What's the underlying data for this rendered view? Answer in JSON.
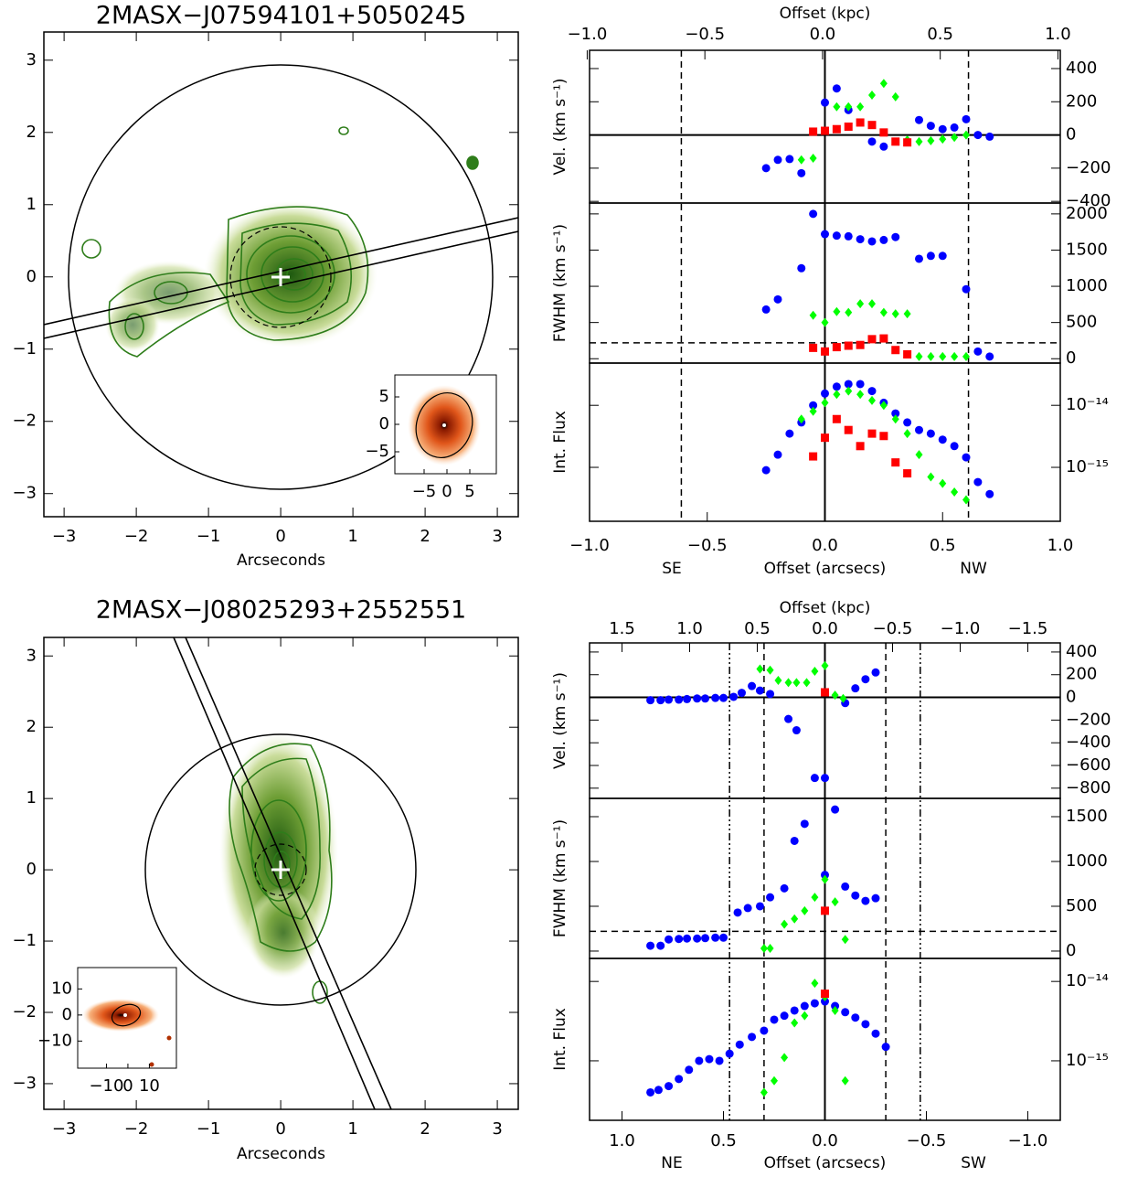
{
  "chart_data": [
    {
      "type": "image",
      "title": "2MASX−J07594101+5050245",
      "xlabel": "Arcseconds",
      "xlim": [
        -3.28,
        3.29
      ],
      "ylim": [
        -3.32,
        3.39
      ],
      "xticks": [
        {
          "value": -3,
          "label": "−3"
        },
        {
          "value": -2,
          "label": "−2"
        },
        {
          "value": -1,
          "label": "−1"
        },
        0,
        1,
        2,
        3
      ],
      "yticks": [
        {
          "value": -3,
          "label": "−3"
        },
        {
          "value": -2,
          "label": "−2"
        },
        {
          "value": -1,
          "label": "−1"
        },
        0,
        1,
        2,
        3
      ],
      "inset": {
        "xlim": [
          -11.4,
          10.8
        ],
        "ylim": [
          -9,
          9
        ],
        "xticks": [
          {
            "value": -5,
            "label": "−5"
          },
          0,
          5
        ],
        "yticks": [
          {
            "value": -5,
            "label": "−5"
          },
          0,
          5
        ]
      }
    },
    {
      "type": "kinematics",
      "xlabel": "Offset (arcsecs)",
      "x2label": "Offset (kpc)",
      "directions": [
        "SE",
        "NW"
      ],
      "xlim": [
        -1.0,
        1.0
      ],
      "xticks": [
        {
          "value": -1,
          "label": "−1.0"
        },
        {
          "value": -0.5,
          "label": "−0.5"
        },
        {
          "value": 0,
          "label": "0.0"
        },
        0.5,
        {
          "value": 1,
          "label": "1.0"
        }
      ],
      "x2lim": [
        -0.99,
        1.01
      ],
      "x2ticks": [
        {
          "value": -1,
          "label": "−1.0"
        },
        {
          "value": -0.5,
          "label": "−0.5"
        },
        {
          "value": 0,
          "label": "0.0"
        },
        0.5,
        {
          "value": 1,
          "label": "1.0"
        }
      ],
      "dashed_x": [
        -0.61,
        0.61
      ],
      "dashdot_x": [],
      "panels": [
        {
          "ylabel": "Vel. (km s⁻¹)",
          "ylim": [
            -410,
            510
          ],
          "log": false,
          "zero_line": true,
          "yticks": [
            {
              "value": -400,
              "label": "−400"
            },
            {
              "value": -200,
              "label": "−200"
            },
            0,
            200,
            400
          ],
          "series": [
            {
              "color": "#0000ff",
              "marker": "circle",
              "x": [
                -0.25,
                -0.2,
                -0.15,
                -0.1,
                0,
                0.05,
                0.1,
                0.2,
                0.25,
                0.4,
                0.45,
                0.5,
                0.55,
                0.6,
                0.65,
                0.7
              ],
              "values": [
                -200,
                -150,
                -145,
                -230,
                195,
                280,
                150,
                -40,
                -70,
                90,
                55,
                35,
                45,
                95,
                0,
                -10
              ]
            },
            {
              "color": "#00ff00",
              "marker": "diamond",
              "x": [
                -0.1,
                -0.05,
                0.05,
                0.1,
                0.15,
                0.2,
                0.25,
                0.3,
                0.35,
                0.4,
                0.45,
                0.5,
                0.55,
                0.6
              ],
              "values": [
                -150,
                -140,
                170,
                170,
                170,
                240,
                310,
                230,
                -30,
                -40,
                -35,
                -25,
                -15,
                0
              ]
            },
            {
              "color": "#ff0000",
              "marker": "square",
              "x": [
                -0.05,
                0,
                0.05,
                0.1,
                0.15,
                0.2,
                0.25,
                0.3,
                0.35
              ],
              "values": [
                20,
                25,
                35,
                50,
                75,
                60,
                15,
                -40,
                -45
              ]
            }
          ]
        },
        {
          "ylabel": "FWHM (km s⁻¹)",
          "ylim": [
            -60,
            2150
          ],
          "log": false,
          "hline_dashed": 220,
          "yticks": [
            0,
            500,
            1000,
            1500,
            2000
          ],
          "series": [
            {
              "color": "#0000ff",
              "marker": "circle",
              "x": [
                -0.25,
                -0.2,
                -0.1,
                -0.05,
                0,
                0.05,
                0.1,
                0.15,
                0.2,
                0.25,
                0.3,
                0.4,
                0.45,
                0.5,
                0.6,
                0.65,
                0.7
              ],
              "values": [
                680,
                820,
                1250,
                2000,
                1720,
                1700,
                1690,
                1650,
                1620,
                1640,
                1680,
                1380,
                1420,
                1420,
                960,
                100,
                30
              ]
            },
            {
              "color": "#00ff00",
              "marker": "diamond",
              "x": [
                -0.05,
                0,
                0.05,
                0.1,
                0.15,
                0.2,
                0.25,
                0.3,
                0.35,
                0.4,
                0.45,
                0.5,
                0.55,
                0.6
              ],
              "values": [
                600,
                500,
                650,
                640,
                760,
                760,
                640,
                620,
                620,
                30,
                30,
                30,
                30,
                30
              ]
            },
            {
              "color": "#ff0000",
              "marker": "square",
              "x": [
                -0.05,
                0,
                0.05,
                0.1,
                0.15,
                0.2,
                0.25,
                0.3,
                0.35
              ],
              "values": [
                150,
                100,
                160,
                180,
                190,
                270,
                280,
                120,
                60
              ]
            }
          ]
        },
        {
          "ylabel": "Int. Flux",
          "ylim": [
            1.35e-16,
            4.8e-14
          ],
          "log": true,
          "yticks": [
            {
              "value": 1e-14,
              "label": "10⁻¹⁴"
            },
            {
              "value": 1e-15,
              "label": "10⁻¹⁵"
            }
          ],
          "series": [
            {
              "color": "#0000ff",
              "marker": "circle",
              "x": [
                -0.25,
                -0.2,
                -0.15,
                -0.1,
                -0.05,
                0,
                0.05,
                0.1,
                0.15,
                0.2,
                0.25,
                0.3,
                0.35,
                0.4,
                0.45,
                0.5,
                0.55,
                0.6,
                0.65,
                0.7
              ],
              "values": [
                9e-16,
                1.6e-15,
                3.5e-15,
                5.3e-15,
                1e-14,
                1.55e-14,
                2e-14,
                2.2e-14,
                2.2e-14,
                1.7e-14,
                1.1e-14,
                7.4e-15,
                5.3e-15,
                4e-15,
                3.5e-15,
                2.8e-15,
                2.2e-15,
                1.45e-15,
                5.8e-16,
                3.7e-16
              ]
            },
            {
              "color": "#00ff00",
              "marker": "diamond",
              "x": [
                -0.1,
                -0.05,
                0,
                0.05,
                0.1,
                0.15,
                0.2,
                0.25,
                0.3,
                0.35,
                0.4,
                0.45,
                0.5,
                0.55,
                0.6
              ],
              "values": [
                6e-15,
                8e-15,
                1.1e-14,
                1.5e-14,
                1.7e-14,
                1.5e-14,
                1.2e-14,
                1e-14,
                6e-15,
                3.5e-15,
                1.6e-15,
                7e-16,
                5.5e-16,
                4e-16,
                3e-16
              ]
            },
            {
              "color": "#ff0000",
              "marker": "square",
              "x": [
                -0.05,
                0,
                0.05,
                0.1,
                0.15,
                0.2,
                0.25,
                0.3,
                0.35
              ],
              "values": [
                1.5e-15,
                3e-15,
                6e-15,
                4e-15,
                2.2e-15,
                3.5e-15,
                3.2e-15,
                1.2e-15,
                8e-16
              ]
            }
          ]
        }
      ]
    },
    {
      "type": "image",
      "title": "2MASX−J08025293+2552551",
      "xlabel": "Arcseconds",
      "xlim": [
        -3.28,
        3.29
      ],
      "ylim": [
        -3.36,
        3.26
      ],
      "xticks": [
        {
          "value": -3,
          "label": "−3"
        },
        {
          "value": -2,
          "label": "−2"
        },
        {
          "value": -1,
          "label": "−1"
        },
        0,
        1,
        2,
        3
      ],
      "yticks": [
        {
          "value": -3,
          "label": "−3"
        },
        {
          "value": -2,
          "label": "−2"
        },
        {
          "value": -1,
          "label": "−1"
        },
        0,
        1,
        2,
        3
      ],
      "inset": {
        "xlim": [
          -23.4,
          22.6
        ],
        "ylim": [
          -20.4,
          18.2
        ],
        "xticks": [
          {
            "value": -10,
            "label": "−10"
          },
          0,
          10
        ],
        "yticks": [
          {
            "value": -10,
            "label": "−10"
          },
          0,
          10
        ]
      }
    },
    {
      "type": "kinematics",
      "xlabel": "Offset (arcsecs)",
      "x2label": "Offset (kpc)",
      "directions": [
        "NE",
        "SW"
      ],
      "xlim": [
        1.16,
        -1.16
      ],
      "xticks": [
        {
          "value": 1,
          "label": "1.0"
        },
        0.5,
        {
          "value": 0,
          "label": "0.0"
        },
        {
          "value": -0.5,
          "label": "−0.5"
        },
        {
          "value": -1,
          "label": "−1.0"
        }
      ],
      "x2lim": [
        1.74,
        -1.74
      ],
      "x2ticks": [
        1.5,
        {
          "value": 1,
          "label": "1.0"
        },
        0.5,
        {
          "value": 0,
          "label": "0.0"
        },
        {
          "value": -0.5,
          "label": "−0.5"
        },
        {
          "value": -1,
          "label": "−1.0"
        },
        {
          "value": -1.5,
          "label": "−1.5"
        }
      ],
      "dashed_x": [
        0.3,
        -0.3
      ],
      "dashdot_x": [
        0.47,
        -0.47
      ],
      "panels": [
        {
          "ylabel": "Vel. (km s⁻¹)",
          "ylim": [
            -890,
            480
          ],
          "log": false,
          "zero_line": true,
          "yticks": [
            {
              "value": -800,
              "label": "−800"
            },
            {
              "value": -600,
              "label": "−600"
            },
            {
              "value": -400,
              "label": "−400"
            },
            {
              "value": -200,
              "label": "−200"
            },
            0,
            200,
            400
          ],
          "series": [
            {
              "color": "#0000ff",
              "marker": "circle",
              "x": [
                0.86,
                0.81,
                0.77,
                0.72,
                0.68,
                0.63,
                0.59,
                0.54,
                0.5,
                0.45,
                0.41,
                0.36,
                0.32,
                0.27,
                0.18,
                0.14,
                0.05,
                0,
                -0.1,
                -0.15,
                -0.2,
                -0.25
              ],
              "values": [
                -25,
                -25,
                -20,
                -20,
                -15,
                -10,
                -10,
                -5,
                -5,
                5,
                40,
                100,
                60,
                30,
                -190,
                -290,
                -710,
                -710,
                -50,
                80,
                160,
                220
              ]
            },
            {
              "color": "#00ff00",
              "marker": "diamond",
              "x": [
                0.32,
                0.27,
                0.23,
                0.18,
                0.14,
                0.09,
                0.05,
                0,
                -0.05,
                -0.09
              ],
              "values": [
                250,
                240,
                150,
                130,
                130,
                130,
                230,
                280,
                20,
                -10
              ]
            },
            {
              "color": "#ff0000",
              "marker": "square",
              "x": [
                0
              ],
              "values": [
                45
              ]
            }
          ]
        },
        {
          "ylabel": "FWHM (km s⁻¹)",
          "ylim": [
            -82,
            1704
          ],
          "log": false,
          "hline_dashed": 220,
          "yticks": [
            0,
            500,
            1000,
            1500
          ],
          "series": [
            {
              "color": "#0000ff",
              "marker": "circle",
              "x": [
                0.86,
                0.81,
                0.77,
                0.72,
                0.68,
                0.63,
                0.59,
                0.54,
                0.5,
                0.43,
                0.38,
                0.32,
                0.27,
                0.2,
                0.15,
                0.1,
                0,
                -0.05,
                -0.1,
                -0.15,
                -0.2,
                -0.25
              ],
              "values": [
                60,
                60,
                130,
                135,
                140,
                140,
                145,
                150,
                150,
                430,
                480,
                500,
                600,
                700,
                1230,
                1420,
                850,
                1580,
                720,
                620,
                560,
                590
              ]
            },
            {
              "color": "#00ff00",
              "marker": "diamond",
              "x": [
                0.3,
                0.27,
                0.2,
                0.15,
                0.1,
                0.05,
                0,
                -0.05,
                -0.1
              ],
              "values": [
                30,
                30,
                300,
                360,
                450,
                600,
                800,
                550,
                130
              ]
            },
            {
              "color": "#ff0000",
              "marker": "square",
              "x": [
                0
              ],
              "values": [
                450
              ]
            }
          ]
        },
        {
          "ylabel": "Int. Flux",
          "ylim": [
            1.78e-16,
            1.95e-14
          ],
          "log": true,
          "yticks": [
            {
              "value": 1e-14,
              "label": "10⁻¹⁴"
            },
            {
              "value": 1e-15,
              "label": "10⁻¹⁵"
            }
          ],
          "series": [
            {
              "color": "#0000ff",
              "marker": "circle",
              "x": [
                0.86,
                0.82,
                0.77,
                0.72,
                0.67,
                0.62,
                0.57,
                0.52,
                0.47,
                0.42,
                0.36,
                0.3,
                0.25,
                0.2,
                0.15,
                0.1,
                0.05,
                0,
                -0.05,
                -0.1,
                -0.15,
                -0.2,
                -0.25,
                -0.3
              ],
              "values": [
                4e-16,
                4.3e-16,
                4.8e-16,
                5.9e-16,
                7.7e-16,
                1e-15,
                1.05e-15,
                1e-15,
                1.23e-15,
                1.6e-15,
                2e-15,
                2.4e-15,
                3.3e-15,
                3.7e-15,
                4.3e-15,
                4.9e-15,
                5.3e-15,
                5.6e-15,
                4.9e-15,
                4.1e-15,
                3.5e-15,
                2.9e-15,
                2.2e-15,
                1.5e-15
              ]
            },
            {
              "color": "#00ff00",
              "marker": "diamond",
              "x": [
                0.3,
                0.25,
                0.2,
                0.15,
                0.1,
                0.05,
                0,
                -0.05,
                -0.1
              ],
              "values": [
                4e-16,
                5.6e-16,
                1.1e-15,
                3e-15,
                3.7e-15,
                9.5e-15,
                6.4e-15,
                4.3e-15,
                5.6e-16
              ]
            },
            {
              "color": "#ff0000",
              "marker": "square",
              "x": [
                0
              ],
              "values": [
                7e-15
              ]
            }
          ]
        }
      ]
    }
  ]
}
